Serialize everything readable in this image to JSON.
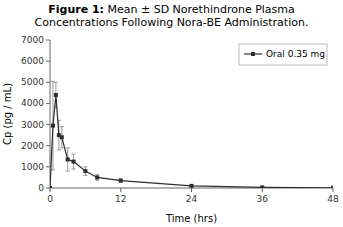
{
  "chart_data": {
    "type": "line",
    "title": "Figure 1: Mean ± SD Norethindrone Plasma\nConcentrations Following Nora-BE Administration.",
    "title_bold": "Figure 1:",
    "xlabel": "Time (hrs)",
    "ylabel": "Cp (pg / mL)",
    "x": [
      0,
      0.5,
      1,
      1.5,
      2,
      3,
      4,
      6,
      8,
      12,
      24,
      36,
      48
    ],
    "series": [
      {
        "name": "Oral 0.35 mg",
        "color": "#2d2d2d",
        "marker": "square",
        "values": [
          0,
          2950,
          4400,
          2500,
          2400,
          1350,
          1250,
          800,
          500,
          350,
          100,
          30,
          10
        ],
        "errors": [
          0,
          2100,
          600,
          700,
          500,
          550,
          350,
          200,
          130,
          80,
          40,
          20,
          8
        ]
      }
    ],
    "xlim": [
      0,
      48
    ],
    "ylim": [
      0,
      7000
    ],
    "xticks": [
      0,
      12,
      24,
      36,
      48
    ],
    "yticks": [
      0,
      1000,
      2000,
      3000,
      4000,
      5000,
      6000,
      7000
    ],
    "legend": "upper right"
  }
}
